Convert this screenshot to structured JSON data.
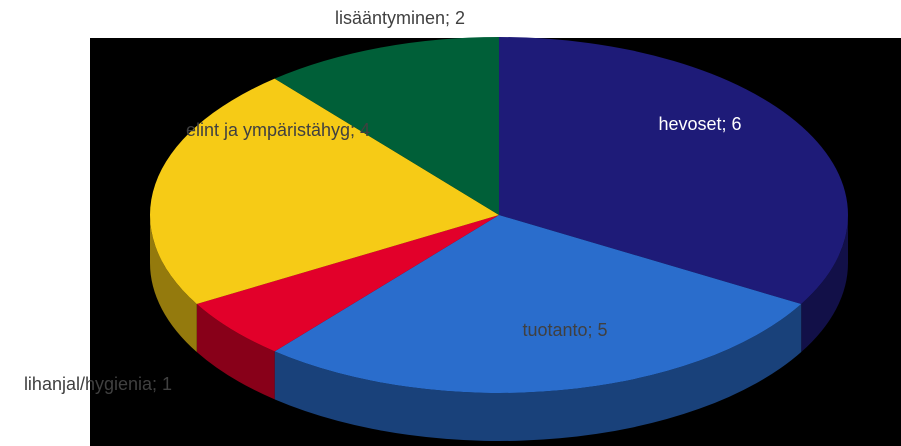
{
  "chart_data": {
    "type": "pie3d",
    "values": [
      6,
      5,
      1,
      4,
      2
    ],
    "value_labels": [
      "hevoset; 6",
      "tuotanto; 5",
      "lihanjal/hygienia; 1",
      "elint ja ympäristähyg; 4",
      "lisääntyminen; 2"
    ],
    "colors": [
      "#1e1b78",
      "#2a6dcc",
      "#e2002a",
      "#f6cb16",
      "#005f38"
    ]
  }
}
